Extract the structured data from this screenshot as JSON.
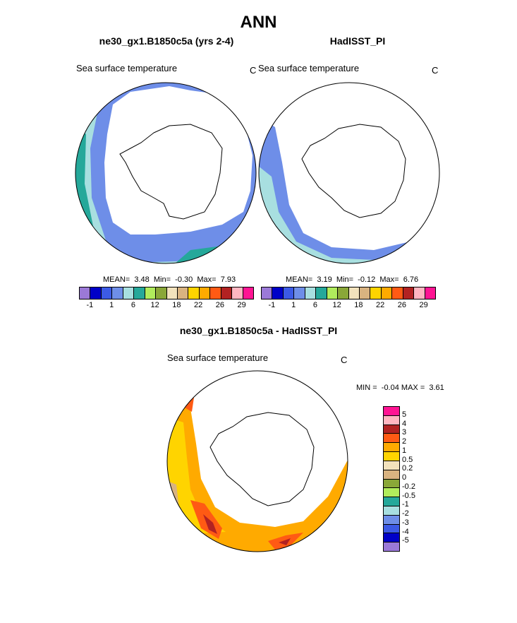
{
  "title": "ANN",
  "panels": {
    "left": {
      "case": "ne30_gx1.B1850c5a (yrs 2-4)",
      "variable": "Sea surface temperature",
      "units": "C",
      "stats": {
        "mean_label": "MEAN=",
        "mean": "3.48",
        "min_label": "Min=",
        "min": "-0.30",
        "max_label": "Max=",
        "max": "7.93"
      },
      "colorbar": {
        "colors": [
          "#9b79d8",
          "#0000c8",
          "#3c5ae6",
          "#6e8ee8",
          "#a8dfe0",
          "#25a89a",
          "#b0ec5c",
          "#8aa738",
          "#f2e2bc",
          "#d9b380",
          "#ffd400",
          "#ffaa00",
          "#ff5a14",
          "#b22222",
          "#ffb6c1",
          "#ff1493"
        ],
        "tick_labels": [
          "-1",
          "1",
          "6",
          "12",
          "18",
          "22",
          "26",
          "29"
        ]
      }
    },
    "right": {
      "case": "HadISST_PI",
      "variable": "Sea surface temperature",
      "units": "C",
      "stats": {
        "mean_label": "MEAN=",
        "mean": "3.19",
        "min_label": "Min=",
        "min": "-0.12",
        "max_label": "Max=",
        "max": "6.76"
      },
      "colorbar": {
        "colors": [
          "#9b79d8",
          "#0000c8",
          "#3c5ae6",
          "#6e8ee8",
          "#a8dfe0",
          "#25a89a",
          "#b0ec5c",
          "#8aa738",
          "#f2e2bc",
          "#d9b380",
          "#ffd400",
          "#ffaa00",
          "#ff5a14",
          "#b22222",
          "#ffb6c1",
          "#ff1493"
        ],
        "tick_labels": [
          "-1",
          "1",
          "6",
          "12",
          "18",
          "22",
          "26",
          "29"
        ]
      }
    },
    "diff": {
      "case": "ne30_gx1.B1850c5a - HadISST_PI",
      "variable": "Sea surface temperature",
      "units": "C",
      "stats": {
        "min_label": "MIN =",
        "min": "-0.04",
        "max_label": "MAX =",
        "max": "3.61"
      },
      "colorbar": {
        "colors": [
          "#ff1493",
          "#ffb6c1",
          "#b22222",
          "#ff5a14",
          "#ffaa00",
          "#ffd400",
          "#f2e2bc",
          "#d9b380",
          "#8aa738",
          "#b0ec5c",
          "#25a89a",
          "#a8dfe0",
          "#6e8ee8",
          "#3c5ae6",
          "#0000c8",
          "#9b79d8"
        ],
        "levels": [
          "5",
          "4",
          "3",
          "2",
          "1",
          "0.5",
          "0.2",
          "0",
          "-0.2",
          "-0.5",
          "-1",
          "-2",
          "-3",
          "-4",
          "-5"
        ]
      }
    }
  },
  "palette": {
    "land": "#ffffff",
    "outline": "#000000",
    "sst_light_blue": "#a8dfe0",
    "sst_blue": "#6e8ee8",
    "sst_teal": "#25a89a",
    "diff_yellow": "#ffd400",
    "diff_orange": "#ffaa00",
    "diff_red": "#ff5a14",
    "diff_darkred": "#b22222"
  }
}
